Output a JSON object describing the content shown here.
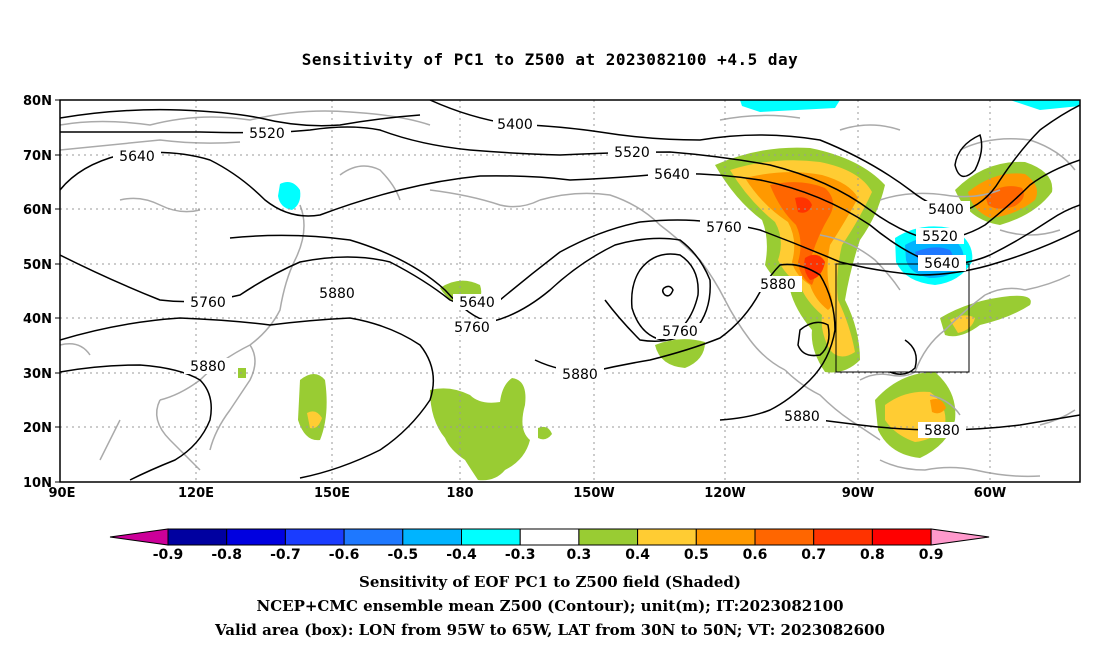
{
  "title": "Sensitivity of PC1 to Z500 at 2023082100 +4.5 day",
  "lat_ticks": [
    "80N",
    "70N",
    "60N",
    "50N",
    "40N",
    "30N",
    "20N",
    "10N"
  ],
  "lon_ticks": [
    "90E",
    "120E",
    "150E",
    "180",
    "150W",
    "120W",
    "90W",
    "60W"
  ],
  "contour_labels": {
    "c5400a": "5400",
    "c5400b": "5400",
    "c5520a": "5520",
    "c5520b": "5520",
    "c5520c": "5520",
    "c5640a": "5640",
    "c5640b": "5640",
    "c5640c": "5640",
    "c5640d": "5640",
    "c5760a": "5760",
    "c5760b": "5760",
    "c5760c": "5760",
    "c5760d": "5760",
    "c5880a": "5880",
    "c5880b": "5880",
    "c5880c": "5880",
    "c5880d": "5880",
    "c5880e": "5880",
    "c5880f": "5880"
  },
  "colorbar": {
    "labels": [
      "-0.9",
      "-0.8",
      "-0.7",
      "-0.6",
      "-0.5",
      "-0.4",
      "-0.3",
      "0.3",
      "0.4",
      "0.5",
      "0.6",
      "0.7",
      "0.8",
      "0.9"
    ],
    "colors": [
      "#0000a0",
      "#0000e0",
      "#1a3cff",
      "#1e78ff",
      "#00b4ff",
      "#00ffff",
      "#ffffff",
      "#99cc33",
      "#ffcc33",
      "#ff9900",
      "#ff6600",
      "#ff3300",
      "#ff0000"
    ],
    "low_color": "#cc0099",
    "high_color": "#ff99cc"
  },
  "captions": {
    "line1": "Sensitivity of EOF PC1 to Z500 field (Shaded)",
    "line2": "NCEP+CMC ensemble mean Z500 (Contour); unit(m); IT:2023082100",
    "line3": "Valid area (box): LON from 95W to 65W, LAT from 30N to 50N; VT: 2023082600"
  }
}
